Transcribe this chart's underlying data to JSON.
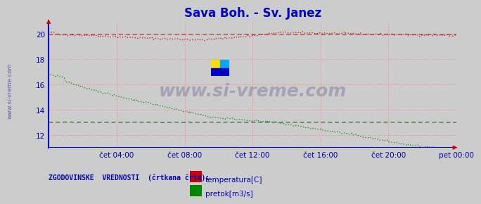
{
  "title": "Sava Boh. - Sv. Janez",
  "title_color": "#0000cc",
  "title_fontsize": 12,
  "bg_color": "#cccccc",
  "plot_bg_color": "#cccccc",
  "grid_color": "#ff8888",
  "xtick_color": "#0000aa",
  "ytick_color": "#0000aa",
  "xlim": [
    0,
    288
  ],
  "ylim": [
    11,
    21
  ],
  "yticks": [
    12,
    14,
    16,
    18,
    20
  ],
  "xtick_positions": [
    48,
    96,
    144,
    192,
    240,
    288
  ],
  "xtick_labels": [
    "čet 04:00",
    "čet 08:00",
    "čet 12:00",
    "čet 16:00",
    "čet 20:00",
    "pet 00:00"
  ],
  "temp_color": "#cc0000",
  "flow_color": "#008800",
  "hist_color_temp": "#884444",
  "hist_color_flow": "#336633",
  "axis_line_color": "#0000cc",
  "arrow_color": "#cc0000",
  "watermark": "www.si-vreme.com",
  "watermark_color": "#8888aa",
  "sidebar_text": "www.si-vreme.com",
  "sidebar_color": "#4444aa",
  "legend_title": "ZGODOVINSKE  VREDNOSTI  (črtkana črta):",
  "legend_label1": "temperatura[C]",
  "legend_label2": "pretok[m3/s]",
  "legend_color": "#0000cc"
}
